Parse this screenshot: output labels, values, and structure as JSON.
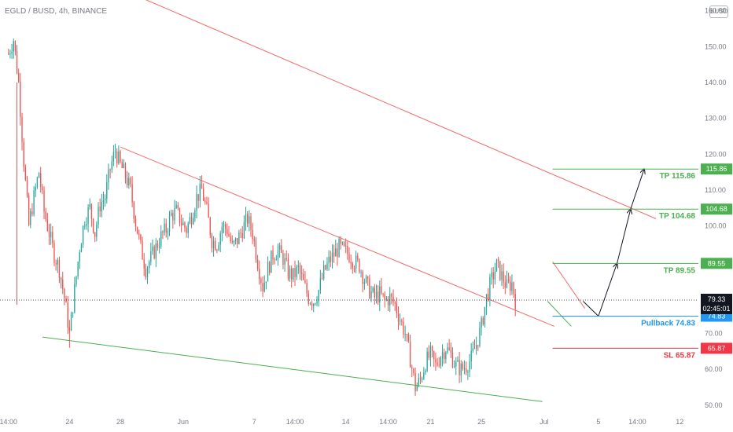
{
  "header": {
    "symbol": "EGLD / BUSD, 4h, BINANCE",
    "currency": "BUSD"
  },
  "colors": {
    "up": "#26a69a",
    "down": "#ef5350",
    "trend_red": "#f26b6b",
    "trend_green": "#4caf50",
    "tp": "#4caf50",
    "pullback": "#2196f3",
    "sl": "#f23645",
    "price_tag": "#131722"
  },
  "chart_data": {
    "type": "candlestick",
    "y_axis": {
      "ticks": [
        "50.00",
        "60.00",
        "70.00",
        "80.00",
        "90.00",
        "100.00",
        "110.00",
        "120.00",
        "130.00",
        "140.00",
        "150.00",
        "160.00"
      ],
      "tick_values": [
        50,
        60,
        70,
        80,
        90,
        100,
        110,
        120,
        130,
        140,
        150,
        160
      ],
      "range": [
        48,
        163
      ]
    },
    "x_axis": {
      "ticks": [
        "14:00",
        "24",
        "28",
        "Jun",
        "7",
        "14:00",
        "14",
        "14:00",
        "21",
        "25",
        "Jul",
        "5",
        "14:00",
        "12"
      ],
      "tick_bars": [
        0,
        36,
        66,
        103,
        145,
        169,
        199,
        224,
        249,
        279,
        316,
        348,
        371,
        396
      ],
      "range_bars": [
        -5,
        407
      ]
    },
    "price_path": [
      [
        0,
        148
      ],
      [
        3,
        152
      ],
      [
        6,
        140
      ],
      [
        9,
        118
      ],
      [
        12,
        100
      ],
      [
        15,
        108
      ],
      [
        18,
        115
      ],
      [
        21,
        104
      ],
      [
        24,
        98
      ],
      [
        27,
        92
      ],
      [
        30,
        88
      ],
      [
        33,
        80
      ],
      [
        36,
        70
      ],
      [
        39,
        82
      ],
      [
        42,
        94
      ],
      [
        45,
        102
      ],
      [
        48,
        105
      ],
      [
        51,
        98
      ],
      [
        54,
        106
      ],
      [
        57,
        108
      ],
      [
        60,
        116
      ],
      [
        63,
        121
      ],
      [
        66,
        117
      ],
      [
        69,
        114
      ],
      [
        72,
        110
      ],
      [
        75,
        101
      ],
      [
        78,
        94
      ],
      [
        81,
        88
      ],
      [
        84,
        91
      ],
      [
        87,
        94
      ],
      [
        90,
        97
      ],
      [
        93,
        99
      ],
      [
        96,
        103
      ],
      [
        99,
        104
      ],
      [
        102,
        101
      ],
      [
        105,
        99
      ],
      [
        108,
        103
      ],
      [
        111,
        108
      ],
      [
        114,
        110
      ],
      [
        117,
        104
      ],
      [
        120,
        96
      ],
      [
        123,
        95
      ],
      [
        126,
        100
      ],
      [
        129,
        99
      ],
      [
        132,
        94
      ],
      [
        135,
        96
      ],
      [
        138,
        99
      ],
      [
        141,
        102
      ],
      [
        144,
        98
      ],
      [
        147,
        90
      ],
      [
        150,
        83
      ],
      [
        153,
        88
      ],
      [
        156,
        92
      ],
      [
        159,
        93
      ],
      [
        162,
        91
      ],
      [
        165,
        87
      ],
      [
        168,
        86
      ],
      [
        171,
        88
      ],
      [
        174,
        84
      ],
      [
        177,
        80
      ],
      [
        180,
        79
      ],
      [
        183,
        82
      ],
      [
        186,
        87
      ],
      [
        189,
        90
      ],
      [
        192,
        92
      ],
      [
        195,
        94
      ],
      [
        198,
        93
      ],
      [
        201,
        92
      ],
      [
        204,
        90
      ],
      [
        207,
        89
      ],
      [
        210,
        85
      ],
      [
        213,
        82
      ],
      [
        216,
        80
      ],
      [
        219,
        81
      ],
      [
        222,
        79
      ],
      [
        225,
        80
      ],
      [
        228,
        78
      ],
      [
        231,
        74
      ],
      [
        234,
        70
      ],
      [
        237,
        63
      ],
      [
        240,
        55
      ],
      [
        243,
        57
      ],
      [
        246,
        62
      ],
      [
        249,
        64
      ],
      [
        252,
        61
      ],
      [
        255,
        64
      ],
      [
        258,
        66
      ],
      [
        261,
        64
      ],
      [
        264,
        61
      ],
      [
        267,
        60
      ],
      [
        270,
        61
      ],
      [
        273,
        63
      ],
      [
        276,
        67
      ],
      [
        279,
        72
      ],
      [
        282,
        80
      ],
      [
        285,
        85
      ],
      [
        288,
        89
      ],
      [
        291,
        86
      ],
      [
        294,
        83
      ],
      [
        297,
        84
      ],
      [
        299,
        79.3
      ]
    ],
    "last_price": "79.33",
    "countdown": "02:45:01",
    "levels": [
      {
        "name": "TP 115.86",
        "value": 115.86,
        "tag": "115.86",
        "kind": "tp"
      },
      {
        "name": "TP 104.68",
        "value": 104.68,
        "tag": "104.68",
        "kind": "tp"
      },
      {
        "name": "TP 89.55",
        "value": 89.55,
        "tag": "89.55",
        "kind": "tp"
      },
      {
        "name": "Pullback 74.83",
        "value": 74.83,
        "tag": "74.83",
        "kind": "pullback"
      },
      {
        "name": "SL 65.87",
        "value": 65.87,
        "tag": "65.87",
        "kind": "sl"
      }
    ],
    "level_x_range": [
      321,
      378
    ],
    "trendlines": [
      {
        "color": "trend_red",
        "from": [
          37,
          172
        ],
        "to": [
          382,
          102
        ]
      },
      {
        "color": "trend_red",
        "from": [
          66,
          122
        ],
        "to": [
          322,
          72
        ]
      },
      {
        "color": "trend_green",
        "from": [
          20,
          69
        ],
        "to": [
          315,
          51
        ]
      },
      {
        "color": "trend_red",
        "from": [
          321,
          90
        ],
        "to": [
          340,
          77
        ]
      },
      {
        "color": "trend_green",
        "from": [
          318,
          79
        ],
        "to": [
          332,
          72
        ]
      }
    ],
    "projection_path": [
      [
        339,
        79
      ],
      [
        348,
        74.83
      ],
      [
        359,
        89.55
      ],
      [
        367,
        104.68
      ],
      [
        375,
        115.86
      ]
    ]
  }
}
